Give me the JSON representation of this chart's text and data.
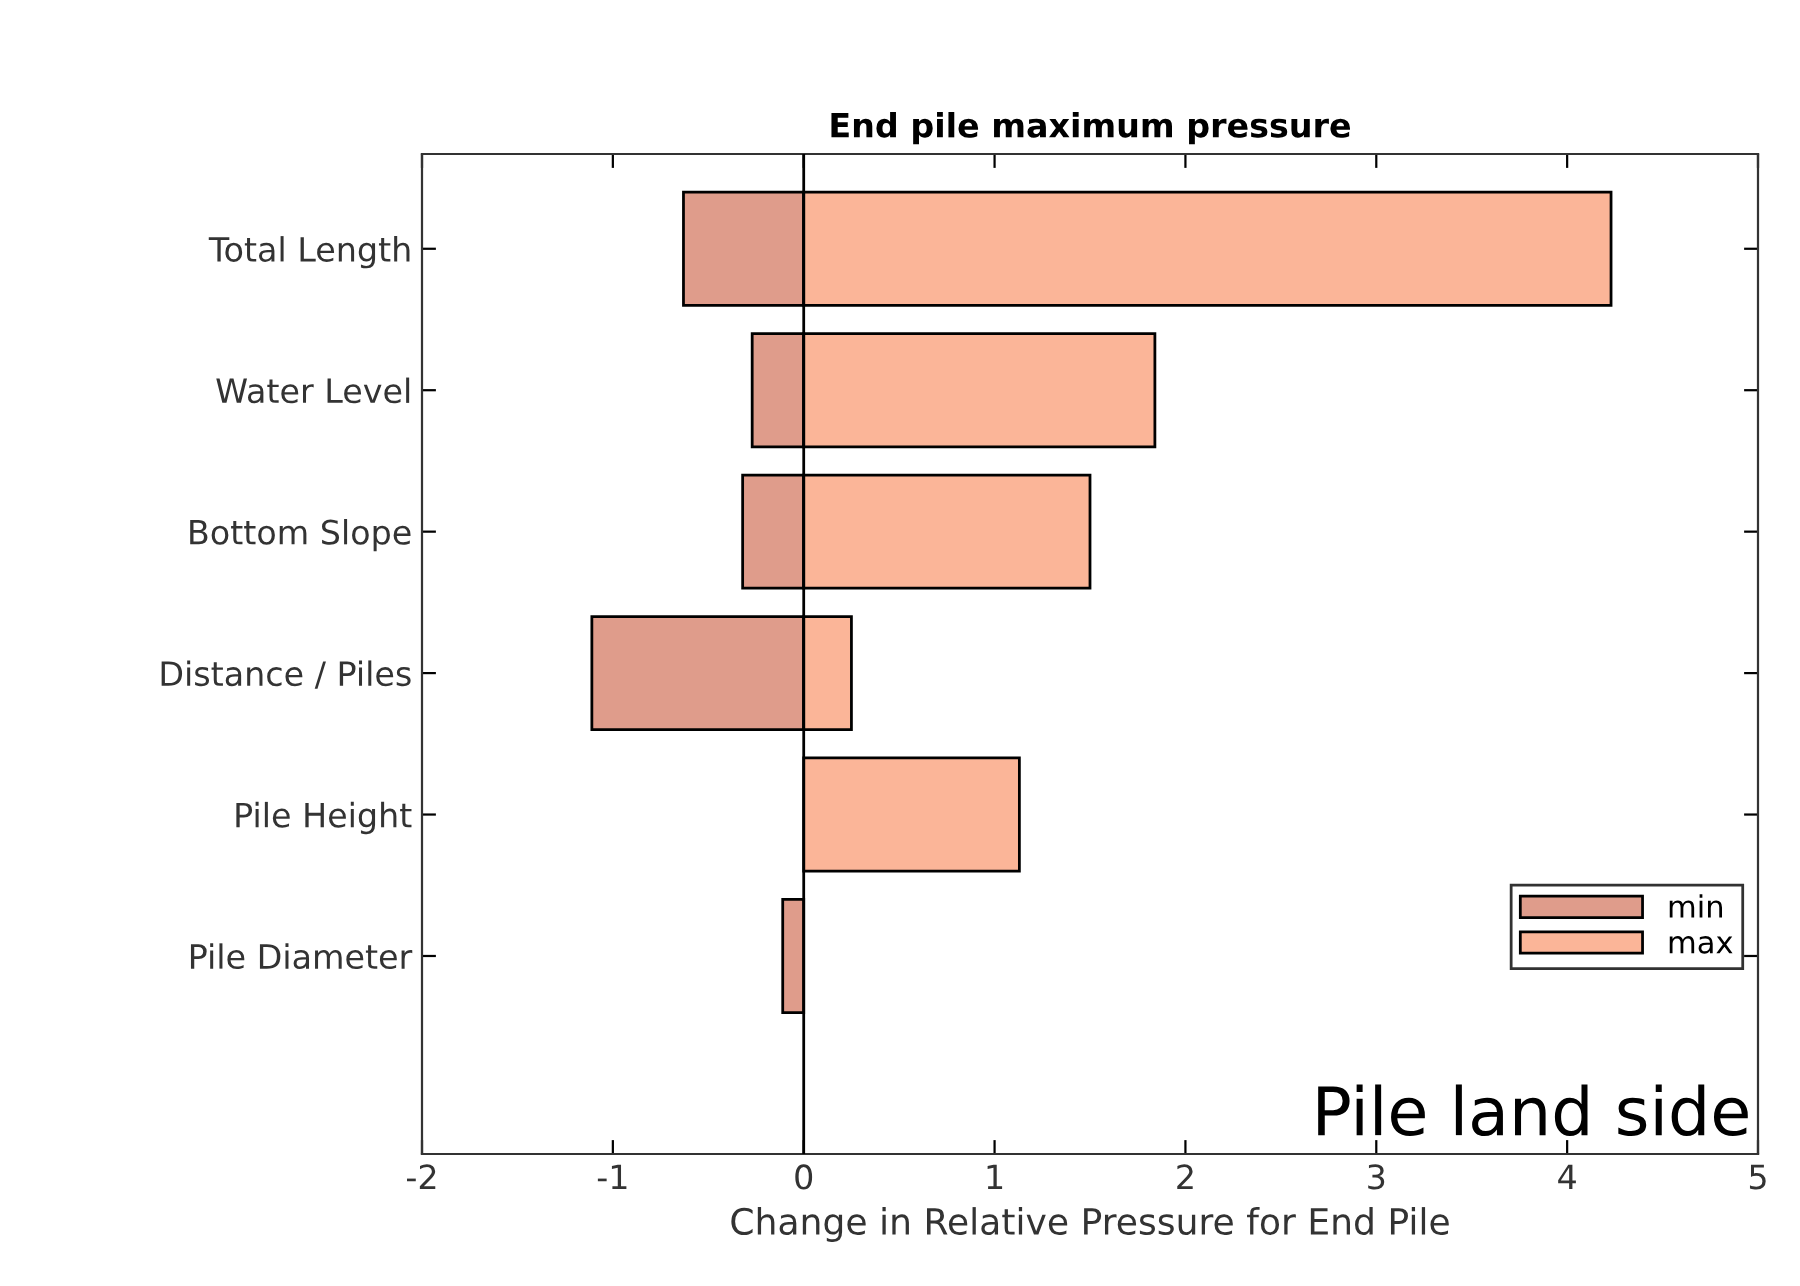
{
  "chart_data": {
    "type": "bar",
    "orientation": "horizontal",
    "stacked": true,
    "title": "End pile maximum pressure",
    "xlabel": "Change in Relative Pressure for End Pile",
    "categories": [
      "Total Length",
      "Water Level",
      "Bottom Slope",
      "Distance / Piles",
      "Pile Height",
      "Pile Diameter"
    ],
    "series": [
      {
        "name": "min",
        "color": "#df9c8b",
        "values": [
          -0.63,
          -0.27,
          -0.32,
          -1.11,
          null,
          -0.11
        ]
      },
      {
        "name": "max",
        "color": "#fbb598",
        "values": [
          4.23,
          1.84,
          1.5,
          0.25,
          1.13,
          null
        ]
      }
    ],
    "xlim": [
      -2,
      5
    ],
    "xticks": [
      -2,
      -1,
      0,
      1,
      2,
      3,
      4,
      5
    ],
    "ref_lines": [
      {
        "axis": "x",
        "value": 0,
        "label": null,
        "color": "#000000"
      }
    ],
    "grid": false,
    "legend": "bottom right",
    "annotations": [
      "Pile land side"
    ]
  }
}
